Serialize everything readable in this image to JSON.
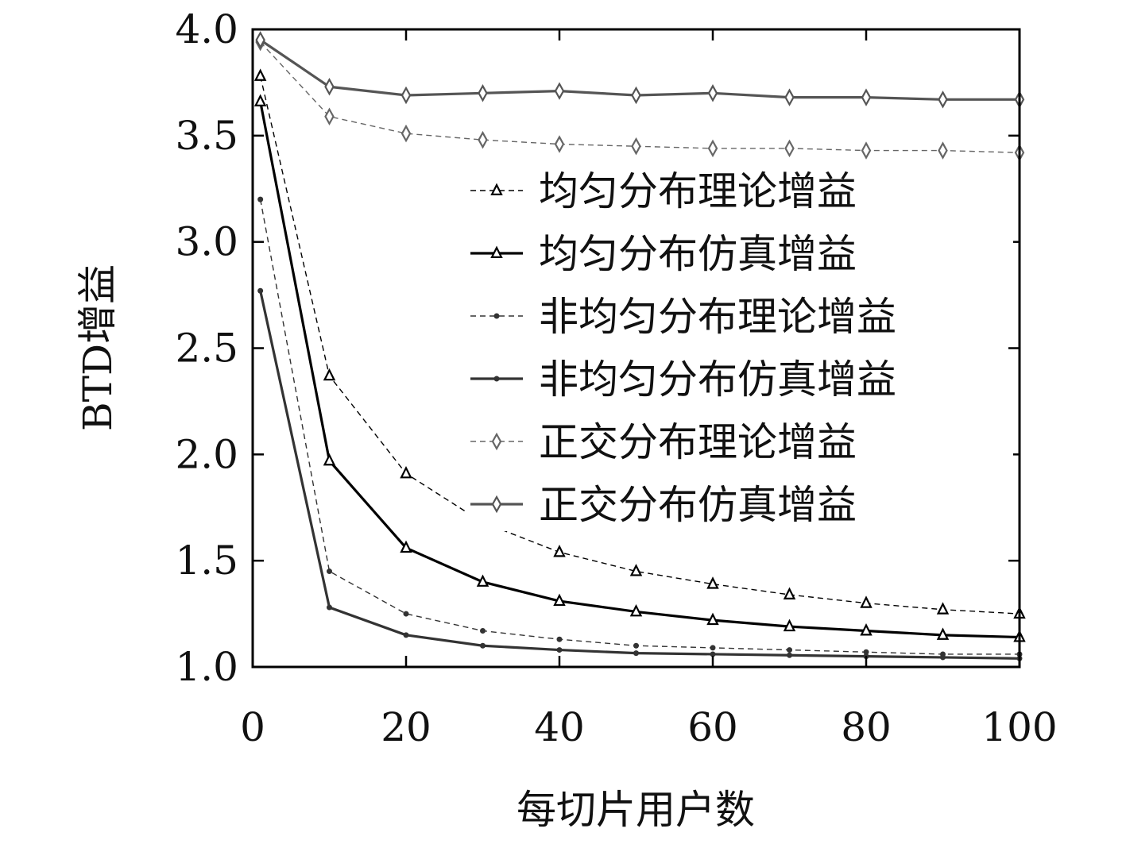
{
  "chart_data": {
    "type": "line",
    "title": "",
    "xlabel": "每切片用户数",
    "ylabel": "BTD增益",
    "xlim": [
      0,
      100
    ],
    "ylim": [
      1.0,
      4.0
    ],
    "x_ticks": [
      0,
      20,
      40,
      60,
      80,
      100
    ],
    "x_tick_labels": [
      "0",
      "20",
      "40",
      "60",
      "80",
      "100"
    ],
    "y_ticks": [
      1.0,
      1.5,
      2.0,
      2.5,
      3.0,
      3.5,
      4.0
    ],
    "y_tick_labels": [
      "1.0",
      "1.5",
      "2.0",
      "2.5",
      "3.0",
      "3.5",
      "4.0"
    ],
    "grid": false,
    "legend_position": "right",
    "x": [
      1,
      10,
      20,
      30,
      40,
      50,
      60,
      70,
      80,
      90,
      100
    ],
    "series": [
      {
        "name": "均匀分布理论增益",
        "values": [
          3.78,
          2.37,
          1.91,
          1.68,
          1.54,
          1.45,
          1.39,
          1.34,
          1.3,
          1.27,
          1.25
        ],
        "color": "#000000",
        "line": "dashed",
        "marker": "triangle-open"
      },
      {
        "name": "均匀分布仿真增益",
        "values": [
          3.66,
          1.97,
          1.56,
          1.4,
          1.31,
          1.26,
          1.22,
          1.19,
          1.17,
          1.15,
          1.14
        ],
        "color": "#000000",
        "line": "solid",
        "marker": "triangle-open"
      },
      {
        "name": "非均匀分布理论增益",
        "values": [
          3.2,
          1.45,
          1.25,
          1.17,
          1.13,
          1.1,
          1.09,
          1.08,
          1.07,
          1.06,
          1.06
        ],
        "color": "#333333",
        "line": "dashed",
        "marker": "dot"
      },
      {
        "name": "非均匀分布仿真增益",
        "values": [
          2.77,
          1.28,
          1.15,
          1.1,
          1.08,
          1.065,
          1.06,
          1.055,
          1.05,
          1.045,
          1.04
        ],
        "color": "#333333",
        "line": "solid",
        "marker": "dot"
      },
      {
        "name": "正交分布理论增益",
        "values": [
          3.94,
          3.59,
          3.51,
          3.48,
          3.46,
          3.45,
          3.44,
          3.44,
          3.43,
          3.43,
          3.42
        ],
        "color": "#666666",
        "line": "dashed",
        "marker": "diamond-open"
      },
      {
        "name": "正交分布仿真增益",
        "values": [
          3.95,
          3.73,
          3.69,
          3.7,
          3.71,
          3.69,
          3.7,
          3.68,
          3.68,
          3.67,
          3.67
        ],
        "color": "#555555",
        "line": "solid",
        "marker": "diamond-open"
      }
    ]
  }
}
